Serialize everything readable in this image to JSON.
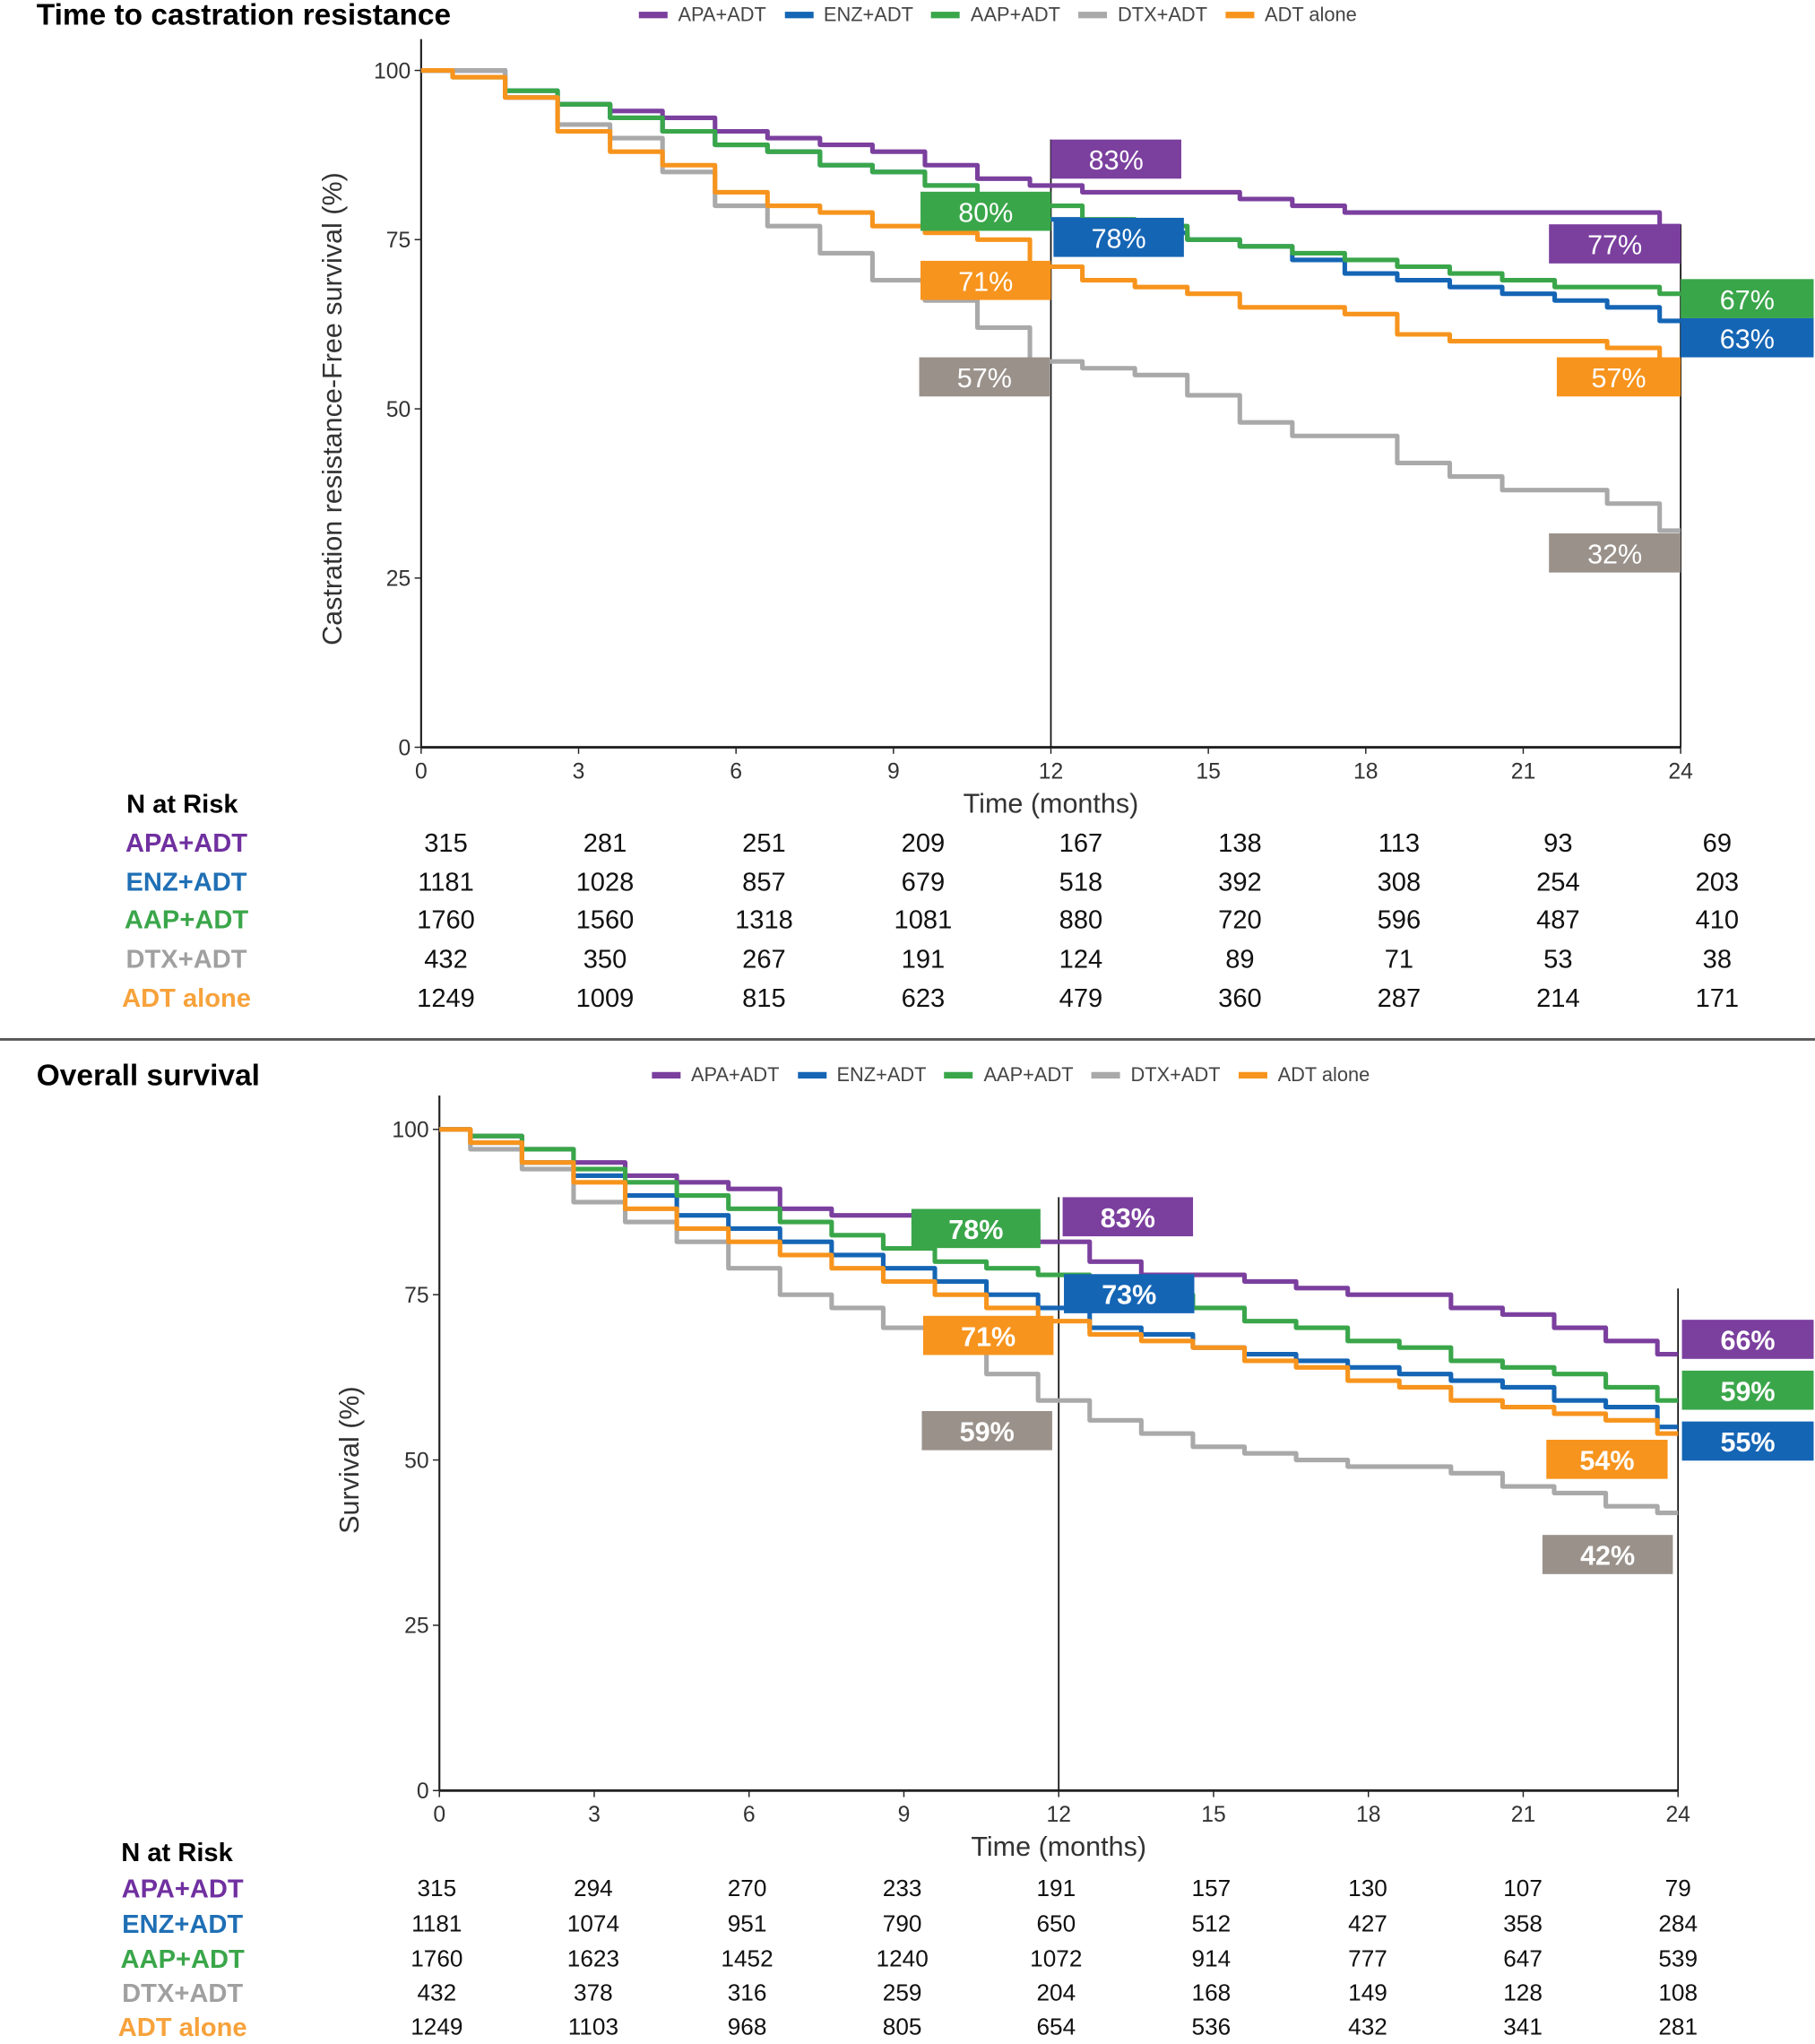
{
  "colors": {
    "APA+ADT": "#7b3f9e",
    "ENZ+ADT": "#1565b5",
    "AAP+ADT": "#3aa64a",
    "DTX+ADT": "#a9a9a9",
    "ADT alone": "#f7941d",
    "label_gray": "#9a918b"
  },
  "label_colors": {
    "APA+ADT": "#7030a0",
    "ENZ+ADT": "#1f6fb5",
    "AAP+ADT": "#3aa64a",
    "DTX+ADT": "#a0a0a0",
    "ADT alone": "#f7a23b"
  },
  "chart_data": [
    {
      "type": "line",
      "title": "Time to castration resistance",
      "xlabel": "Time (months)",
      "ylabel": "Castration resistance-Free survival (%)",
      "xlim": [
        0,
        24
      ],
      "ylim": [
        0,
        100
      ],
      "xticks": [
        "0",
        "3",
        "6",
        "9",
        "12",
        "15",
        "18",
        "21",
        "24"
      ],
      "yticks": [
        "0",
        "25",
        "50",
        "75",
        "100"
      ],
      "legend": [
        "APA+ADT",
        "ENZ+ADT",
        "AAP+ADT",
        "DTX+ADT",
        "ADT alone"
      ],
      "legend_position": "top",
      "grid": false,
      "reference_lines_x": [
        12,
        24
      ],
      "x": [
        0,
        1,
        2,
        3,
        4,
        5,
        6,
        7,
        8,
        9,
        10,
        11,
        12,
        13,
        14,
        15,
        16,
        17,
        18,
        19,
        20,
        21,
        22,
        23,
        24
      ],
      "series": [
        {
          "name": "APA+ADT",
          "values": [
            100,
            100,
            96,
            95,
            94,
            93,
            91,
            90,
            89,
            88,
            86,
            84,
            83,
            82,
            82,
            82,
            81,
            80,
            79,
            79,
            79,
            79,
            79,
            79,
            77
          ]
        },
        {
          "name": "ENZ+ADT",
          "values": [
            100,
            100,
            97,
            95,
            93,
            91,
            89,
            88,
            86,
            85,
            83,
            81,
            78,
            77,
            76,
            75,
            74,
            72,
            70,
            69,
            68,
            67,
            66,
            65,
            63
          ]
        },
        {
          "name": "AAP+ADT",
          "values": [
            100,
            99,
            97,
            95,
            93,
            91,
            89,
            88,
            86,
            85,
            83,
            81,
            80,
            78,
            77,
            75,
            74,
            73,
            72,
            71,
            70,
            69,
            68,
            68,
            67
          ]
        },
        {
          "name": "DTX+ADT",
          "values": [
            100,
            100,
            96,
            92,
            90,
            85,
            80,
            77,
            73,
            69,
            66,
            62,
            57,
            56,
            55,
            52,
            48,
            46,
            46,
            42,
            40,
            38,
            38,
            36,
            32
          ]
        },
        {
          "name": "ADT alone",
          "values": [
            100,
            99,
            96,
            91,
            88,
            86,
            82,
            80,
            79,
            77,
            76,
            75,
            71,
            69,
            68,
            67,
            65,
            65,
            64,
            61,
            60,
            60,
            60,
            59,
            57
          ]
        }
      ],
      "annotations": [
        {
          "series": "APA+ADT",
          "x": 12,
          "label": "83%"
        },
        {
          "series": "AAP+ADT",
          "x": 12,
          "label": "80%"
        },
        {
          "series": "ENZ+ADT",
          "x": 12,
          "label": "78%"
        },
        {
          "series": "ADT alone",
          "x": 12,
          "label": "71%"
        },
        {
          "series": "DTX+ADT",
          "x": 12,
          "label": "57%"
        },
        {
          "series": "APA+ADT",
          "x": 24,
          "label": "77%"
        },
        {
          "series": "AAP+ADT",
          "x": 24,
          "label": "67%"
        },
        {
          "series": "ENZ+ADT",
          "x": 24,
          "label": "63%"
        },
        {
          "series": "ADT alone",
          "x": 24,
          "label": "57%"
        },
        {
          "series": "DTX+ADT",
          "x": 24,
          "label": "32%"
        }
      ],
      "risk_table": {
        "header": "N at Risk",
        "rows": [
          {
            "name": "APA+ADT",
            "values": [
              "315",
              "281",
              "251",
              "209",
              "167",
              "138",
              "113",
              "93",
              "69"
            ]
          },
          {
            "name": "ENZ+ADT",
            "values": [
              "1181",
              "1028",
              "857",
              "679",
              "518",
              "392",
              "308",
              "254",
              "203"
            ]
          },
          {
            "name": "AAP+ADT",
            "values": [
              "1760",
              "1560",
              "1318",
              "1081",
              "880",
              "720",
              "596",
              "487",
              "410"
            ]
          },
          {
            "name": "DTX+ADT",
            "values": [
              "432",
              "350",
              "267",
              "191",
              "124",
              "89",
              "71",
              "53",
              "38"
            ]
          },
          {
            "name": "ADT alone",
            "values": [
              "1249",
              "1009",
              "815",
              "623",
              "479",
              "360",
              "287",
              "214",
              "171"
            ]
          }
        ]
      }
    },
    {
      "type": "line",
      "title": "Overall survival",
      "xlabel": "Time (months)",
      "ylabel": "Survival (%)",
      "xlim": [
        0,
        24
      ],
      "ylim": [
        0,
        100
      ],
      "xticks": [
        "0",
        "3",
        "6",
        "9",
        "12",
        "15",
        "18",
        "21",
        "24"
      ],
      "yticks": [
        "0",
        "25",
        "50",
        "75",
        "100"
      ],
      "legend": [
        "APA+ADT",
        "ENZ+ADT",
        "AAP+ADT",
        "DTX+ADT",
        "ADT alone"
      ],
      "legend_position": "top",
      "grid": false,
      "reference_lines_x": [
        12,
        24
      ],
      "x": [
        0,
        1,
        2,
        3,
        4,
        5,
        6,
        7,
        8,
        9,
        10,
        11,
        12,
        13,
        14,
        15,
        16,
        17,
        18,
        19,
        20,
        21,
        22,
        23,
        24
      ],
      "series": [
        {
          "name": "APA+ADT",
          "values": [
            100,
            99,
            97,
            95,
            93,
            92,
            91,
            88,
            87,
            87,
            87,
            86,
            83,
            80,
            78,
            78,
            77,
            76,
            75,
            75,
            73,
            72,
            70,
            68,
            66
          ]
        },
        {
          "name": "ENZ+ADT",
          "values": [
            100,
            98,
            95,
            93,
            90,
            87,
            85,
            83,
            81,
            79,
            77,
            75,
            73,
            70,
            69,
            67,
            66,
            65,
            64,
            63,
            62,
            61,
            59,
            58,
            55
          ]
        },
        {
          "name": "AAP+ADT",
          "values": [
            100,
            99,
            97,
            94,
            92,
            90,
            88,
            86,
            84,
            82,
            80,
            79,
            78,
            76,
            75,
            73,
            71,
            70,
            68,
            67,
            65,
            64,
            63,
            61,
            59
          ]
        },
        {
          "name": "DTX+ADT",
          "values": [
            100,
            97,
            94,
            89,
            86,
            83,
            79,
            75,
            73,
            70,
            67,
            63,
            59,
            56,
            54,
            52,
            51,
            50,
            49,
            49,
            48,
            46,
            45,
            43,
            42
          ]
        },
        {
          "name": "ADT alone",
          "values": [
            100,
            98,
            95,
            92,
            88,
            85,
            83,
            81,
            79,
            77,
            75,
            73,
            71,
            69,
            68,
            67,
            65,
            64,
            62,
            61,
            59,
            58,
            57,
            56,
            54
          ]
        }
      ],
      "annotations": [
        {
          "series": "AAP+ADT",
          "x": 12,
          "label": "78%"
        },
        {
          "series": "APA+ADT",
          "x": 12,
          "label": "83%"
        },
        {
          "series": "ENZ+ADT",
          "x": 12,
          "label": "73%"
        },
        {
          "series": "ADT alone",
          "x": 12,
          "label": "71%"
        },
        {
          "series": "DTX+ADT",
          "x": 12,
          "label": "59%"
        },
        {
          "series": "APA+ADT",
          "x": 24,
          "label": "66%"
        },
        {
          "series": "AAP+ADT",
          "x": 24,
          "label": "59%"
        },
        {
          "series": "ENZ+ADT",
          "x": 24,
          "label": "55%"
        },
        {
          "series": "ADT alone",
          "x": 24,
          "label": "54%"
        },
        {
          "series": "DTX+ADT",
          "x": 24,
          "label": "42%"
        }
      ],
      "risk_table": {
        "header": "N at Risk",
        "rows": [
          {
            "name": "APA+ADT",
            "values": [
              "315",
              "294",
              "270",
              "233",
              "191",
              "157",
              "130",
              "107",
              "79"
            ]
          },
          {
            "name": "ENZ+ADT",
            "values": [
              "1181",
              "1074",
              "951",
              "790",
              "650",
              "512",
              "427",
              "358",
              "284"
            ]
          },
          {
            "name": "AAP+ADT",
            "values": [
              "1760",
              "1623",
              "1452",
              "1240",
              "1072",
              "914",
              "777",
              "647",
              "539"
            ]
          },
          {
            "name": "DTX+ADT",
            "values": [
              "432",
              "378",
              "316",
              "259",
              "204",
              "168",
              "149",
              "128",
              "108"
            ]
          },
          {
            "name": "ADT alone",
            "values": [
              "1249",
              "1103",
              "968",
              "805",
              "654",
              "536",
              "432",
              "341",
              "281"
            ]
          }
        ]
      }
    }
  ]
}
